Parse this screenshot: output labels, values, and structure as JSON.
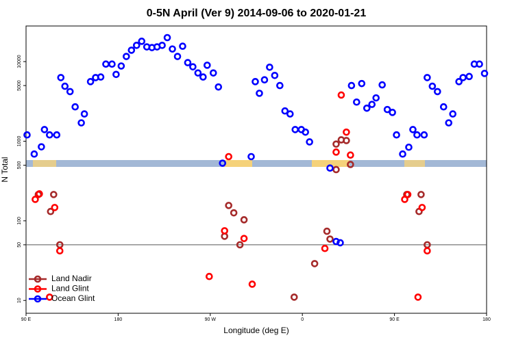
{
  "chart_data": {
    "type": "scatter",
    "title": "0-5N April (Ver 9)   2014-09-06 to 2020-01-21",
    "x_label": "Longitude (deg E)",
    "y_label": "N Total",
    "log_y": true,
    "xlim": [
      90,
      540
    ],
    "ylim": [
      6.9,
      28000
    ],
    "xticks": [
      {
        "value": 90,
        "label": "90 E"
      },
      180,
      {
        "value": 270,
        "label": "90 W"
      },
      {
        "value": 360,
        "label": "0"
      },
      {
        "value": 450,
        "label": "90 E"
      },
      {
        "value": 540,
        "label": "180"
      }
    ],
    "yticks": [
      10,
      50,
      100,
      500,
      1000,
      5000,
      10000
    ],
    "reference_line": 50,
    "legend": "bottom-left",
    "series": [
      {
        "name": "Land Nadir",
        "color": "#a52a2a",
        "x": [
          102,
          117,
          114,
          123,
          288,
          293,
          284,
          299,
          303,
          352,
          372,
          384,
          387,
          393,
          398,
          403,
          393,
          407,
          462,
          476,
          474,
          482
        ],
        "values": [
          214,
          214,
          131,
          50,
          156,
          126,
          64,
          50,
          103,
          11,
          29,
          74,
          59,
          920,
          1040,
          1020,
          440,
          510,
          214,
          214,
          131,
          50
        ]
      },
      {
        "name": "Land Glint",
        "color": "#ff0000",
        "x": [
          99,
          103,
          118,
          113,
          123,
          269,
          284,
          288,
          303,
          311,
          382,
          393,
          398,
          403,
          407,
          460,
          463,
          477,
          473,
          482
        ],
        "values": [
          186,
          218,
          147,
          11,
          42,
          20,
          75,
          640,
          60,
          16,
          45,
          730,
          3800,
          1300,
          670,
          186,
          214,
          147,
          11,
          42
        ]
      },
      {
        "name": "Ocean Glint",
        "color": "#0000ff",
        "x": [
          91,
          98,
          105,
          108,
          113,
          120,
          124,
          128,
          133,
          138,
          144,
          147,
          153,
          158,
          163,
          168,
          174,
          178,
          183,
          188,
          193,
          198,
          203,
          208,
          213,
          218,
          223,
          228,
          233,
          238,
          243,
          248,
          253,
          258,
          263,
          267,
          273,
          278,
          282,
          310,
          314,
          318,
          323,
          328,
          333,
          338,
          343,
          348,
          353,
          359,
          363,
          367,
          387,
          393,
          397,
          408,
          413,
          418,
          423,
          428,
          432,
          438,
          443,
          448,
          452,
          458,
          464,
          468,
          472,
          479,
          482,
          487,
          492,
          498,
          503,
          507,
          513,
          517,
          523,
          528,
          533,
          538
        ],
        "values": [
          1200,
          690,
          850,
          1400,
          1200,
          1200,
          6300,
          4900,
          4200,
          2700,
          1700,
          2200,
          5600,
          6300,
          6400,
          9300,
          9300,
          6900,
          8800,
          11600,
          13900,
          16000,
          18000,
          15300,
          15000,
          15300,
          16000,
          20000,
          14400,
          11600,
          15600,
          9700,
          8600,
          7200,
          6400,
          9000,
          7200,
          4800,
          530,
          640,
          5600,
          4000,
          5900,
          8500,
          6700,
          5000,
          2400,
          2200,
          1400,
          1400,
          1300,
          980,
          460,
          55,
          53,
          5000,
          3100,
          5300,
          2600,
          2900,
          3500,
          5100,
          2500,
          2300,
          1200,
          690,
          840,
          1400,
          1200,
          1200,
          6300,
          4900,
          4200,
          2700,
          1700,
          2200,
          5600,
          6300,
          6500,
          9300,
          9300,
          7100
        ]
      }
    ]
  }
}
